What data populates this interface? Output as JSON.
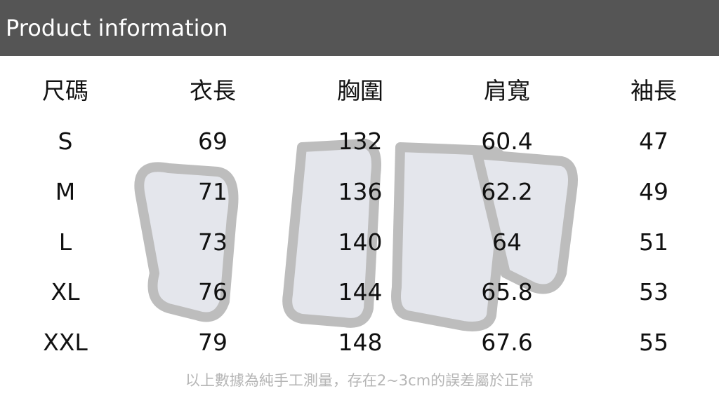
{
  "header": {
    "title": "Product information"
  },
  "table": {
    "columns": [
      "尺碼",
      "衣長",
      "胸圍",
      "肩寬",
      "袖長"
    ],
    "rows": [
      [
        "S",
        "69",
        "132",
        "60.4",
        "47"
      ],
      [
        "M",
        "71",
        "136",
        "62.2",
        "49"
      ],
      [
        "L",
        "73",
        "140",
        "64",
        "51"
      ],
      [
        "XL",
        "76",
        "144",
        "65.8",
        "53"
      ],
      [
        "XXL",
        "79",
        "148",
        "67.6",
        "55"
      ]
    ]
  },
  "footer": {
    "note": "以上數據為純手工測量，存在2~3cm的誤差屬於正常"
  },
  "colors": {
    "header_bg": "#555555",
    "header_text": "#ffffff",
    "note_text": "#b5b5b5"
  }
}
